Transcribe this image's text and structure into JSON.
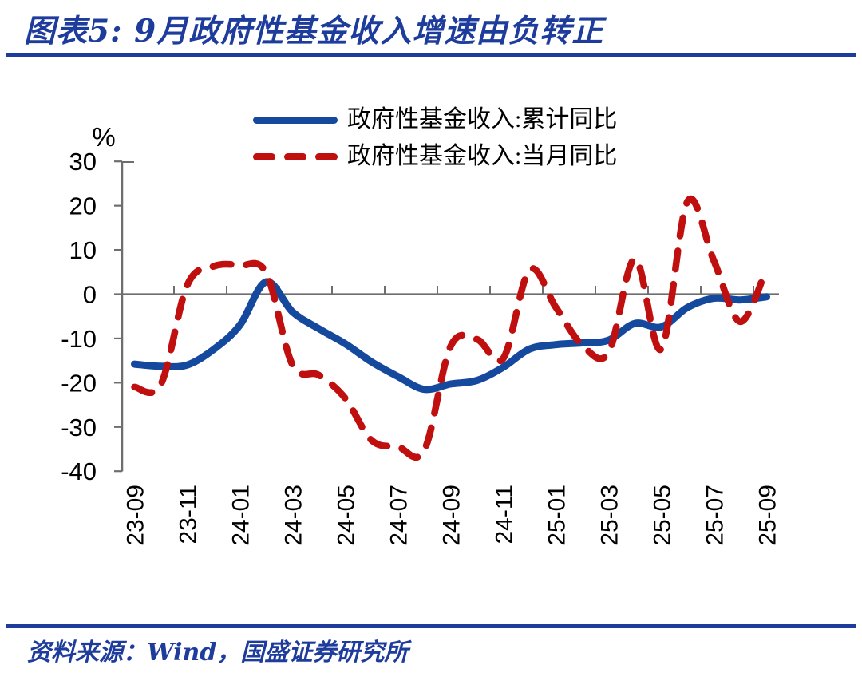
{
  "page": {
    "source_note": "资料来源：Wind，国盛证券研究所"
  },
  "colors": {
    "accent_blue": "#1E3C9C",
    "series_blue": "#15499D",
    "series_red": "#C00F0F",
    "axis_line": "#6E6E6E",
    "label": "#000000"
  },
  "chart_data": {
    "type": "line",
    "smoothed": true,
    "title": "图表5: 9月政府性基金收入增速由负转正",
    "xlabel": "",
    "ylabel": "%",
    "unit_label": "%",
    "ylim": [
      -40,
      30
    ],
    "ytick_step": 10,
    "grid": false,
    "legend_position": "top-center",
    "y_ticks": [
      30,
      20,
      10,
      0,
      -10,
      -20,
      -30,
      -40
    ],
    "categories": [
      "23-09",
      "23-10",
      "23-11",
      "23-12",
      "24-01",
      "24-02",
      "24-03",
      "24-04",
      "24-05",
      "24-06",
      "24-07",
      "24-08",
      "24-09",
      "24-10",
      "24-11",
      "24-12",
      "25-01",
      "25-02",
      "25-03",
      "25-04",
      "25-05",
      "25-06",
      "25-07",
      "25-08",
      "25-09"
    ],
    "x_tick_labels": [
      "23-09",
      "23-11",
      "24-01",
      "24-03",
      "24-05",
      "24-07",
      "24-09",
      "24-11",
      "25-01",
      "25-03",
      "25-05",
      "25-07",
      "25-09"
    ],
    "series": [
      {
        "name": "政府性基金收入:累计同比",
        "line_style": "solid",
        "color": "#15499D",
        "values": [
          -15.8,
          -16.3,
          -16.0,
          -12.5,
          -7.0,
          2.8,
          -4.0,
          -7.8,
          -11.2,
          -15.3,
          -18.6,
          -21.5,
          -20.3,
          -19.5,
          -16.5,
          -12.4,
          -11.4,
          -11.0,
          -10.4,
          -6.6,
          -7.4,
          -3.0,
          -0.9,
          -1.3,
          -0.6
        ]
      },
      {
        "name": "政府性基金收入:当月同比",
        "line_style": "dashed",
        "color": "#C00F0F",
        "values": [
          -21.0,
          -20.4,
          2.0,
          6.3,
          6.5,
          4.8,
          -16.0,
          -18.3,
          -23.5,
          -33.0,
          -34.5,
          -35.3,
          -11.8,
          -10.2,
          -14.5,
          5.5,
          -3.0,
          -11.5,
          -13.2,
          8.0,
          -12.4,
          21.0,
          7.5,
          -6.2,
          5.8
        ]
      }
    ]
  }
}
